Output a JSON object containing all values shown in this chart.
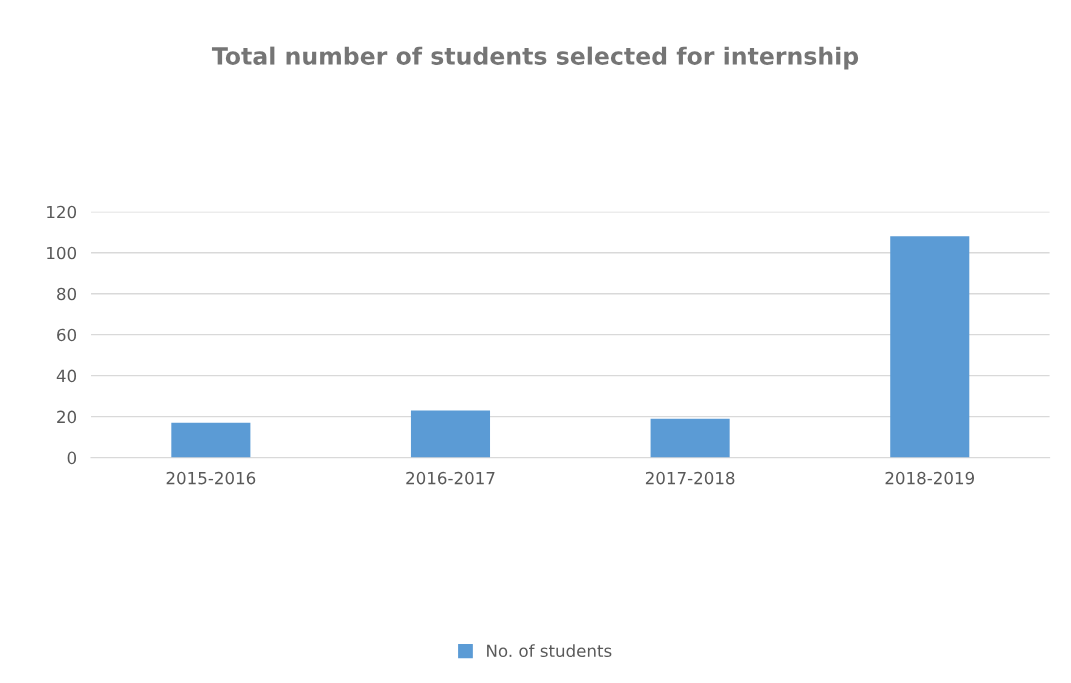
{
  "chart_data": {
    "type": "bar",
    "title": "Total number of students selected for internship",
    "categories": [
      "2015-2016",
      "2016-2017",
      "2017-2018",
      "2018-2019"
    ],
    "series": [
      {
        "name": "No. of students",
        "color": "#5b9bd5",
        "values": [
          17,
          23,
          19,
          108
        ]
      }
    ],
    "ylim": [
      0,
      120
    ],
    "yticks": [
      0,
      20,
      40,
      60,
      80,
      100,
      120
    ],
    "grid": "y",
    "legend": "bottom"
  }
}
